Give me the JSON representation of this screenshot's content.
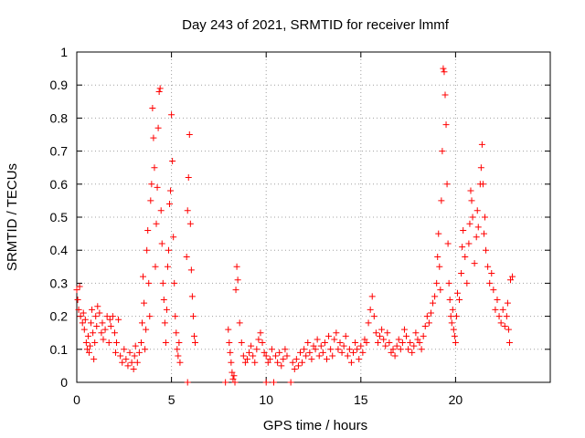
{
  "chart_data": {
    "type": "scatter",
    "title": "Day 243 of 2021, SRMTID for receiver lmmf",
    "xlabel": "GPS time / hours",
    "ylabel": "SRMTID / TECUs",
    "xlim": [
      0,
      25
    ],
    "ylim": [
      0,
      1
    ],
    "xticks": [
      0,
      5,
      10,
      15,
      20
    ],
    "yticks": [
      0,
      0.1,
      0.2,
      0.3,
      0.4,
      0.5,
      0.6,
      0.7,
      0.8,
      0.9,
      1
    ],
    "ytick_labels": [
      "0",
      "0.1",
      "0.2",
      "0.3",
      "0.4",
      "0.5",
      "0.6",
      "0.7",
      "0.8",
      "0.9",
      "1"
    ],
    "xtick_labels": [
      "0",
      "5",
      "10",
      "15",
      "20"
    ],
    "grid": true,
    "marker": "+",
    "color": "#ff0000",
    "series": [
      {
        "name": "SRMTID",
        "points": [
          [
            0.0,
            0.28
          ],
          [
            0.05,
            0.25
          ],
          [
            0.1,
            0.22
          ],
          [
            0.15,
            0.29
          ],
          [
            0.2,
            0.2
          ],
          [
            0.3,
            0.18
          ],
          [
            0.35,
            0.21
          ],
          [
            0.4,
            0.16
          ],
          [
            0.45,
            0.19
          ],
          [
            0.5,
            0.12
          ],
          [
            0.55,
            0.1
          ],
          [
            0.6,
            0.14
          ],
          [
            0.65,
            0.09
          ],
          [
            0.7,
            0.11
          ],
          [
            0.75,
            0.18
          ],
          [
            0.8,
            0.22
          ],
          [
            0.85,
            0.15
          ],
          [
            0.9,
            0.07
          ],
          [
            0.95,
            0.12
          ],
          [
            1.0,
            0.2
          ],
          [
            1.05,
            0.17
          ],
          [
            1.1,
            0.23
          ],
          [
            1.2,
            0.21
          ],
          [
            1.3,
            0.15
          ],
          [
            1.35,
            0.18
          ],
          [
            1.4,
            0.13
          ],
          [
            1.5,
            0.16
          ],
          [
            1.6,
            0.2
          ],
          [
            1.7,
            0.12
          ],
          [
            1.75,
            0.19
          ],
          [
            1.8,
            0.17
          ],
          [
            1.9,
            0.2
          ],
          [
            2.0,
            0.15
          ],
          [
            2.05,
            0.09
          ],
          [
            2.1,
            0.12
          ],
          [
            2.2,
            0.19
          ],
          [
            2.3,
            0.08
          ],
          [
            2.4,
            0.06
          ],
          [
            2.5,
            0.1
          ],
          [
            2.6,
            0.07
          ],
          [
            2.7,
            0.05
          ],
          [
            2.8,
            0.09
          ],
          [
            2.9,
            0.06
          ],
          [
            3.0,
            0.04
          ],
          [
            3.05,
            0.08
          ],
          [
            3.1,
            0.11
          ],
          [
            3.2,
            0.06
          ],
          [
            3.3,
            0.09
          ],
          [
            3.4,
            0.12
          ],
          [
            3.45,
            0.18
          ],
          [
            3.5,
            0.32
          ],
          [
            3.55,
            0.24
          ],
          [
            3.6,
            0.1
          ],
          [
            3.65,
            0.16
          ],
          [
            3.7,
            0.4
          ],
          [
            3.75,
            0.46
          ],
          [
            3.8,
            0.3
          ],
          [
            3.85,
            0.2
          ],
          [
            3.9,
            0.55
          ],
          [
            3.95,
            0.6
          ],
          [
            4.0,
            0.83
          ],
          [
            4.05,
            0.74
          ],
          [
            4.1,
            0.65
          ],
          [
            4.15,
            0.35
          ],
          [
            4.2,
            0.48
          ],
          [
            4.25,
            0.59
          ],
          [
            4.3,
            0.77
          ],
          [
            4.35,
            0.88
          ],
          [
            4.4,
            0.89
          ],
          [
            4.45,
            0.52
          ],
          [
            4.5,
            0.42
          ],
          [
            4.55,
            0.3
          ],
          [
            4.6,
            0.25
          ],
          [
            4.65,
            0.18
          ],
          [
            4.7,
            0.12
          ],
          [
            4.75,
            0.22
          ],
          [
            4.8,
            0.35
          ],
          [
            4.85,
            0.4
          ],
          [
            4.9,
            0.54
          ],
          [
            4.95,
            0.58
          ],
          [
            5.0,
            0.81
          ],
          [
            5.05,
            0.67
          ],
          [
            5.1,
            0.44
          ],
          [
            5.15,
            0.3
          ],
          [
            5.2,
            0.2
          ],
          [
            5.25,
            0.15
          ],
          [
            5.3,
            0.1
          ],
          [
            5.35,
            0.08
          ],
          [
            5.4,
            0.12
          ],
          [
            5.45,
            0.06
          ],
          [
            5.8,
            0.38
          ],
          [
            5.85,
            0.52
          ],
          [
            5.9,
            0.62
          ],
          [
            5.95,
            0.75
          ],
          [
            6.0,
            0.48
          ],
          [
            6.05,
            0.34
          ],
          [
            6.1,
            0.26
          ],
          [
            6.15,
            0.2
          ],
          [
            6.2,
            0.14
          ],
          [
            6.25,
            0.12
          ],
          [
            5.85,
            0.0
          ],
          [
            7.85,
            0.0
          ],
          [
            8.0,
            0.16
          ],
          [
            8.05,
            0.12
          ],
          [
            8.1,
            0.09
          ],
          [
            8.15,
            0.06
          ],
          [
            8.2,
            0.03
          ],
          [
            8.25,
            0.01
          ],
          [
            8.3,
            0.02
          ],
          [
            8.35,
            0.0
          ],
          [
            8.4,
            0.28
          ],
          [
            8.45,
            0.35
          ],
          [
            8.5,
            0.31
          ],
          [
            8.6,
            0.18
          ],
          [
            8.7,
            0.12
          ],
          [
            8.8,
            0.08
          ],
          [
            8.9,
            0.06
          ],
          [
            9.0,
            0.07
          ],
          [
            9.1,
            0.09
          ],
          [
            9.2,
            0.11
          ],
          [
            9.3,
            0.08
          ],
          [
            9.4,
            0.06
          ],
          [
            9.5,
            0.1
          ],
          [
            9.6,
            0.13
          ],
          [
            9.7,
            0.15
          ],
          [
            9.8,
            0.12
          ],
          [
            9.9,
            0.09
          ],
          [
            10.0,
            0.08
          ],
          [
            10.1,
            0.06
          ],
          [
            10.2,
            0.07
          ],
          [
            10.3,
            0.1
          ],
          [
            10.0,
            0.0
          ],
          [
            10.4,
            0.0
          ],
          [
            10.5,
            0.08
          ],
          [
            10.6,
            0.06
          ],
          [
            10.7,
            0.09
          ],
          [
            10.8,
            0.05
          ],
          [
            10.9,
            0.07
          ],
          [
            11.0,
            0.1
          ],
          [
            11.1,
            0.08
          ],
          [
            11.3,
            0.0
          ],
          [
            11.4,
            0.06
          ],
          [
            11.5,
            0.04
          ],
          [
            11.6,
            0.07
          ],
          [
            11.7,
            0.05
          ],
          [
            11.8,
            0.09
          ],
          [
            11.9,
            0.06
          ],
          [
            12.0,
            0.1
          ],
          [
            12.1,
            0.08
          ],
          [
            12.2,
            0.12
          ],
          [
            12.3,
            0.09
          ],
          [
            12.4,
            0.07
          ],
          [
            12.5,
            0.11
          ],
          [
            12.6,
            0.1
          ],
          [
            12.7,
            0.13
          ],
          [
            12.8,
            0.08
          ],
          [
            12.9,
            0.11
          ],
          [
            13.0,
            0.09
          ],
          [
            13.1,
            0.12
          ],
          [
            13.2,
            0.07
          ],
          [
            13.3,
            0.14
          ],
          [
            13.4,
            0.1
          ],
          [
            13.5,
            0.08
          ],
          [
            13.6,
            0.13
          ],
          [
            13.7,
            0.15
          ],
          [
            13.8,
            0.1
          ],
          [
            13.9,
            0.12
          ],
          [
            14.0,
            0.09
          ],
          [
            14.1,
            0.11
          ],
          [
            14.2,
            0.14
          ],
          [
            14.3,
            0.08
          ],
          [
            14.4,
            0.1
          ],
          [
            14.5,
            0.06
          ],
          [
            14.6,
            0.09
          ],
          [
            14.7,
            0.12
          ],
          [
            14.8,
            0.1
          ],
          [
            14.9,
            0.07
          ],
          [
            15.0,
            0.11
          ],
          [
            15.1,
            0.09
          ],
          [
            15.2,
            0.13
          ],
          [
            15.3,
            0.12
          ],
          [
            15.4,
            0.18
          ],
          [
            15.5,
            0.22
          ],
          [
            15.6,
            0.26
          ],
          [
            15.7,
            0.2
          ],
          [
            15.8,
            0.15
          ],
          [
            15.9,
            0.12
          ],
          [
            16.0,
            0.14
          ],
          [
            16.1,
            0.16
          ],
          [
            16.2,
            0.13
          ],
          [
            16.3,
            0.11
          ],
          [
            16.4,
            0.15
          ],
          [
            16.5,
            0.12
          ],
          [
            16.6,
            0.09
          ],
          [
            16.7,
            0.1
          ],
          [
            16.8,
            0.08
          ],
          [
            16.9,
            0.11
          ],
          [
            17.0,
            0.13
          ],
          [
            17.1,
            0.1
          ],
          [
            17.2,
            0.12
          ],
          [
            17.3,
            0.16
          ],
          [
            17.4,
            0.14
          ],
          [
            17.5,
            0.1
          ],
          [
            17.6,
            0.12
          ],
          [
            17.7,
            0.09
          ],
          [
            17.8,
            0.11
          ],
          [
            17.9,
            0.15
          ],
          [
            18.0,
            0.13
          ],
          [
            18.1,
            0.12
          ],
          [
            18.2,
            0.1
          ],
          [
            18.3,
            0.14
          ],
          [
            18.4,
            0.17
          ],
          [
            18.5,
            0.2
          ],
          [
            18.6,
            0.18
          ],
          [
            18.7,
            0.21
          ],
          [
            18.8,
            0.24
          ],
          [
            18.9,
            0.26
          ],
          [
            19.0,
            0.3
          ],
          [
            19.05,
            0.38
          ],
          [
            19.1,
            0.45
          ],
          [
            19.15,
            0.35
          ],
          [
            19.2,
            0.28
          ],
          [
            19.25,
            0.55
          ],
          [
            19.3,
            0.7
          ],
          [
            19.35,
            0.95
          ],
          [
            19.4,
            0.94
          ],
          [
            19.45,
            0.87
          ],
          [
            19.5,
            0.78
          ],
          [
            19.55,
            0.6
          ],
          [
            19.6,
            0.42
          ],
          [
            19.65,
            0.3
          ],
          [
            19.7,
            0.25
          ],
          [
            19.75,
            0.2
          ],
          [
            19.8,
            0.18
          ],
          [
            19.85,
            0.22
          ],
          [
            19.9,
            0.16
          ],
          [
            19.95,
            0.14
          ],
          [
            20.0,
            0.12
          ],
          [
            20.05,
            0.2
          ],
          [
            20.1,
            0.27
          ],
          [
            20.2,
            0.25
          ],
          [
            20.3,
            0.33
          ],
          [
            20.35,
            0.41
          ],
          [
            20.4,
            0.46
          ],
          [
            20.5,
            0.38
          ],
          [
            20.6,
            0.3
          ],
          [
            20.7,
            0.42
          ],
          [
            20.75,
            0.48
          ],
          [
            20.8,
            0.58
          ],
          [
            20.85,
            0.55
          ],
          [
            20.9,
            0.5
          ],
          [
            21.0,
            0.36
          ],
          [
            21.1,
            0.44
          ],
          [
            21.15,
            0.52
          ],
          [
            21.2,
            0.47
          ],
          [
            21.3,
            0.6
          ],
          [
            21.35,
            0.65
          ],
          [
            21.4,
            0.72
          ],
          [
            21.45,
            0.6
          ],
          [
            21.5,
            0.45
          ],
          [
            21.55,
            0.5
          ],
          [
            21.6,
            0.4
          ],
          [
            21.7,
            0.35
          ],
          [
            21.8,
            0.3
          ],
          [
            21.9,
            0.33
          ],
          [
            22.0,
            0.28
          ],
          [
            22.1,
            0.22
          ],
          [
            22.2,
            0.25
          ],
          [
            22.3,
            0.2
          ],
          [
            22.4,
            0.18
          ],
          [
            22.5,
            0.22
          ],
          [
            22.6,
            0.17
          ],
          [
            22.7,
            0.2
          ],
          [
            22.75,
            0.24
          ],
          [
            22.8,
            0.16
          ],
          [
            22.85,
            0.12
          ],
          [
            22.9,
            0.31
          ],
          [
            23.0,
            0.32
          ]
        ]
      }
    ]
  }
}
